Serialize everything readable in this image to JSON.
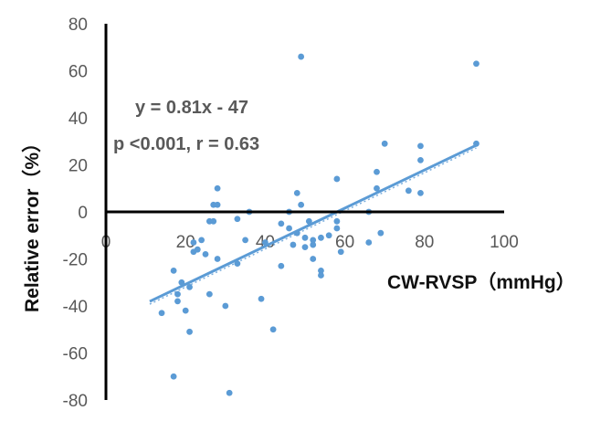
{
  "chart_data": {
    "type": "scatter",
    "xlabel": "CW-RVSP（mmHg）",
    "ylabel": "Relative error（%）",
    "xlim": [
      0,
      100
    ],
    "ylim": [
      -80,
      80
    ],
    "x_ticks": [
      0,
      20,
      40,
      60,
      80,
      100
    ],
    "y_ticks": [
      80,
      60,
      40,
      20,
      0,
      -20,
      -40,
      -60,
      -80
    ],
    "grid": false,
    "colors": {
      "points": "#5B9BD5",
      "trendline": "#5B9BD5",
      "axes": "#000000"
    },
    "annotations": [
      "y = 0.81x - 47",
      "p <0.001, r = 0.63"
    ],
    "trendline": {
      "type": "linear",
      "slope": 0.81,
      "intercept": -47,
      "x_range": [
        11,
        93
      ]
    },
    "points": [
      {
        "x": 14,
        "y": -43
      },
      {
        "x": 17,
        "y": -25
      },
      {
        "x": 17,
        "y": -70
      },
      {
        "x": 18,
        "y": -35
      },
      {
        "x": 18,
        "y": -38
      },
      {
        "x": 19,
        "y": -30
      },
      {
        "x": 20,
        "y": -42
      },
      {
        "x": 21,
        "y": -51
      },
      {
        "x": 21,
        "y": -32
      },
      {
        "x": 22,
        "y": -17
      },
      {
        "x": 22,
        "y": -13
      },
      {
        "x": 23,
        "y": -16
      },
      {
        "x": 24,
        "y": -12
      },
      {
        "x": 25,
        "y": -18
      },
      {
        "x": 26,
        "y": -35
      },
      {
        "x": 26,
        "y": -4
      },
      {
        "x": 27,
        "y": -4
      },
      {
        "x": 27,
        "y": 3
      },
      {
        "x": 28,
        "y": 3
      },
      {
        "x": 28,
        "y": 10
      },
      {
        "x": 28,
        "y": -20
      },
      {
        "x": 30,
        "y": -40
      },
      {
        "x": 31,
        "y": -77
      },
      {
        "x": 33,
        "y": -22
      },
      {
        "x": 33,
        "y": -3
      },
      {
        "x": 35,
        "y": -12
      },
      {
        "x": 36,
        "y": 0
      },
      {
        "x": 39,
        "y": -37
      },
      {
        "x": 40,
        "y": -13
      },
      {
        "x": 42,
        "y": -50
      },
      {
        "x": 44,
        "y": -5
      },
      {
        "x": 44,
        "y": -23
      },
      {
        "x": 46,
        "y": 0
      },
      {
        "x": 46,
        "y": -7
      },
      {
        "x": 47,
        "y": -14
      },
      {
        "x": 48,
        "y": -9
      },
      {
        "x": 48,
        "y": 8
      },
      {
        "x": 49,
        "y": 66
      },
      {
        "x": 49,
        "y": 3
      },
      {
        "x": 50,
        "y": -11
      },
      {
        "x": 50,
        "y": -15
      },
      {
        "x": 51,
        "y": -4
      },
      {
        "x": 52,
        "y": -14
      },
      {
        "x": 52,
        "y": -12
      },
      {
        "x": 52,
        "y": -20
      },
      {
        "x": 54,
        "y": -11
      },
      {
        "x": 54,
        "y": -25
      },
      {
        "x": 54,
        "y": -27
      },
      {
        "x": 56,
        "y": -10
      },
      {
        "x": 58,
        "y": -7
      },
      {
        "x": 58,
        "y": -4
      },
      {
        "x": 58,
        "y": 14
      },
      {
        "x": 59,
        "y": -17
      },
      {
        "x": 66,
        "y": 0
      },
      {
        "x": 66,
        "y": -13
      },
      {
        "x": 68,
        "y": 10
      },
      {
        "x": 68,
        "y": 17
      },
      {
        "x": 69,
        "y": -9
      },
      {
        "x": 70,
        "y": 29
      },
      {
        "x": 76,
        "y": 9
      },
      {
        "x": 79,
        "y": 8
      },
      {
        "x": 79,
        "y": 22
      },
      {
        "x": 79,
        "y": 28
      },
      {
        "x": 93,
        "y": 63
      },
      {
        "x": 93,
        "y": 29
      }
    ]
  }
}
